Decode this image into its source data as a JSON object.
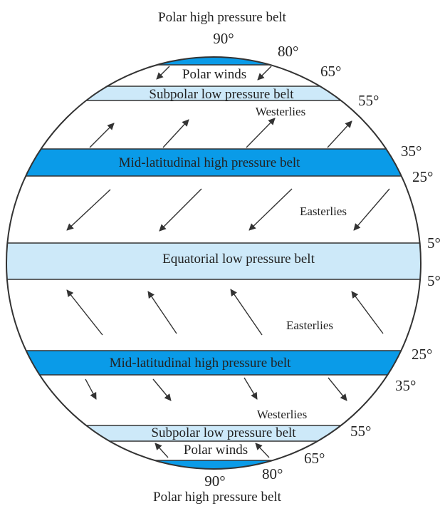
{
  "colors": {
    "dark_belt": "#0a9be8",
    "light_belt": "#cde9f9",
    "outline": "#333333",
    "arrow": "#333333"
  },
  "top": {
    "title": "Polar high pressure belt",
    "pole_deg": "90°",
    "deg_80": "80°",
    "deg_65": "65°",
    "deg_55": "55°",
    "polar_winds": "Polar winds",
    "subpolar_belt": "Subpolar low pressure belt",
    "westerlies": "Westerlies",
    "deg_35": "35°",
    "mid_belt": "Mid-latitudinal high pressure belt",
    "deg_25": "25°",
    "easterlies": "Easterlies",
    "deg_5": "5°"
  },
  "equator": {
    "label": "Equatorial low pressure belt"
  },
  "bottom": {
    "deg_5": "5°",
    "easterlies": "Easterlies",
    "deg_25": "25°",
    "mid_belt": "Mid-latitudinal high pressure belt",
    "deg_35": "35°",
    "westerlies": "Westerlies",
    "deg_55": "55°",
    "subpolar_belt": "Subpolar low pressure belt",
    "polar_winds": "Polar winds",
    "deg_65": "65°",
    "pole_deg": "90°",
    "deg_80": "80°",
    "title": "Polar high pressure belt"
  }
}
